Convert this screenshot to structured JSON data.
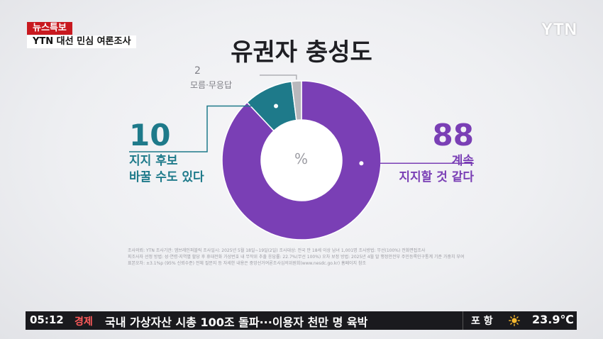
{
  "header": {
    "news_tag": "뉴스특보",
    "program": "YTN 대선 민심 여론조사",
    "logo": "YTN"
  },
  "chart_data": {
    "type": "pie",
    "title": "유권자 충성도",
    "unit": "%",
    "slices": [
      {
        "label_lines": [
          "계속",
          "지지할 것 같다"
        ],
        "value": 88,
        "color": "#7a3fb5"
      },
      {
        "label_lines": [
          "지지 후보",
          "바꿀 수도 있다"
        ],
        "value": 10,
        "color": "#1e7a8a"
      },
      {
        "label_lines": [
          "모름·무응답"
        ],
        "value": 2,
        "color": "#b8b8bc"
      }
    ]
  },
  "footnotes": [
    "조사의뢰: YTN      조사기관: 엠브레인퍼블릭      조사일시: 2025년 5월 18일~19일(2일)      조사대상: 전국 만 18세 이상 남녀 1,001명      조사방법: 무선(100%) 전화면접조사",
    "피조사자 선정 방법: 성·연령·지역별 할당 후 휴대전화 가상번호 내 무작위 추출      응답률: 22.7%(무선 100%)      오차 보정 방법: 2025년 4월 말 행정안전부 주민등록인구통계 기준 가중치 부여",
    "표본오차: ±3.1%p (95% 신뢰수준)      전체 질문지 등 자세한 내용은 중앙선거여론조사심의위원회(www.nesdc.go.kr) 홈페이지 참조"
  ],
  "ticker": {
    "time": "05:12",
    "category": "경제",
    "headline": "국내 가상자산 시총 100조 돌파···이용자 천만 명 육박",
    "location": "포 항",
    "weather_icon": "sun-icon",
    "temperature": "23.9℃"
  }
}
